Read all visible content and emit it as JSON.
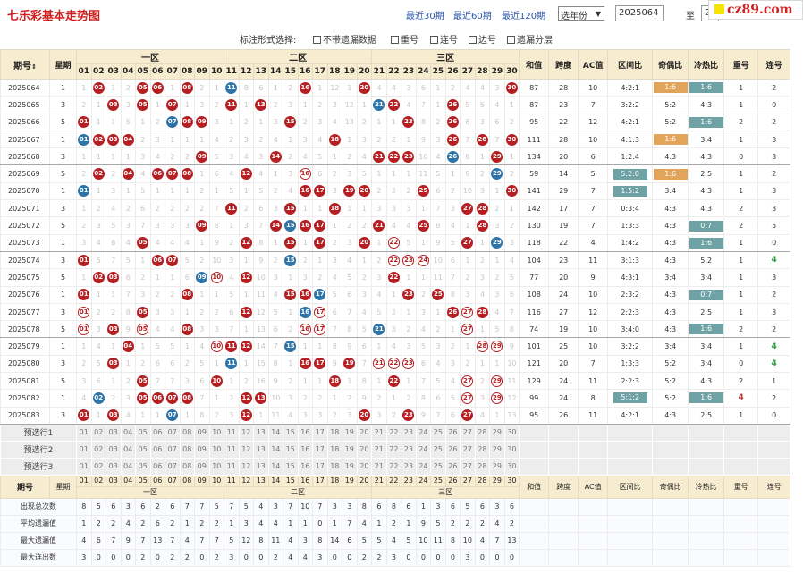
{
  "page": {
    "title": "七乐彩基本走势图",
    "periods": [
      "最近30期",
      "最近60期",
      "最近120期"
    ],
    "year_select": "选年份",
    "range_from": "2025064",
    "range_to_label": "至",
    "range_to": "2",
    "logo": "cz89.com",
    "options_label": "标注形式选择:",
    "options": [
      "不带遗漏数据",
      "重号",
      "连号",
      "边号",
      "遗漏分层"
    ]
  },
  "header": {
    "period": "期号",
    "period_sort": "⇕",
    "week": "星期",
    "zones": [
      "一区",
      "二区",
      "三区"
    ],
    "nums": [
      "01",
      "02",
      "03",
      "04",
      "05",
      "06",
      "07",
      "08",
      "09",
      "10",
      "11",
      "12",
      "13",
      "14",
      "15",
      "16",
      "17",
      "18",
      "19",
      "20",
      "21",
      "22",
      "23",
      "24",
      "25",
      "26",
      "27",
      "28",
      "29",
      "30"
    ],
    "stats": [
      "和值",
      "跨度",
      "AC值",
      "区间比",
      "奇偶比",
      "冷热比",
      "重号",
      "连号"
    ]
  },
  "rows": [
    {
      "p": "2025064",
      "w": "1",
      "c": [
        "1",
        "B02",
        "1",
        "2",
        "B05",
        "B06",
        "1",
        "B08",
        "2",
        "1",
        "L11",
        "8",
        "6",
        "1",
        "2",
        "B16",
        "1",
        "12",
        "1",
        "B20",
        "4",
        "4",
        "3",
        "6",
        "1",
        "2",
        "4",
        "4",
        "3",
        "B30"
      ],
      "st": [
        "87",
        "28",
        "10",
        "4:2:1",
        "O1:6",
        "B1:6",
        "1",
        "2"
      ]
    },
    {
      "p": "2025065",
      "w": "3",
      "c": [
        "2",
        "1",
        "B03",
        "3",
        "B05",
        "1",
        "B07",
        "1",
        "3",
        "2",
        "B11",
        "1",
        "B13",
        "2",
        "3",
        "1",
        "2",
        "3",
        "12",
        "1",
        "W21",
        "B22",
        "4",
        "7",
        "1",
        "B26",
        "5",
        "5",
        "4",
        "1"
      ],
      "st": [
        "87",
        "23",
        "7",
        "3:2:2",
        "5:2",
        "4:3",
        "1",
        "0"
      ]
    },
    {
      "p": "2025066",
      "w": "5",
      "c": [
        "B01",
        "1",
        "1",
        "5",
        "1",
        "2",
        "L07",
        "B08",
        "B09",
        "3",
        "1",
        "2",
        "1",
        "3",
        "B15",
        "2",
        "3",
        "4",
        "13",
        "2",
        "1",
        "1",
        "B23",
        "8",
        "2",
        "B26",
        "6",
        "3",
        "6",
        "2"
      ],
      "st": [
        "95",
        "22",
        "12",
        "4:2:1",
        "5:2",
        "B1:6",
        "2",
        "2"
      ]
    },
    {
      "p": "2025067",
      "w": "1",
      "c": [
        "L01",
        "B02",
        "B03",
        "B04",
        "2",
        "3",
        "1",
        "1",
        "1",
        "4",
        "2",
        "3",
        "2",
        "4",
        "1",
        "3",
        "4",
        "B18",
        "1",
        "3",
        "2",
        "2",
        "1",
        "9",
        "3",
        "B26",
        "7",
        "B28",
        "7",
        "B30"
      ],
      "st": [
        "111",
        "28",
        "10",
        "4:1:3",
        "O1:6",
        "3:4",
        "1",
        "3"
      ]
    },
    {
      "p": "2025068",
      "w": "3",
      "c": [
        "1",
        "1",
        "1",
        "1",
        "3",
        "4",
        "2",
        "2",
        "B09",
        "5",
        "3",
        "4",
        "3",
        "B14",
        "2",
        "4",
        "5",
        "1",
        "2",
        "4",
        "B21",
        "B22",
        "B23",
        "10",
        "4",
        "L26",
        "8",
        "1",
        "B29",
        "1"
      ],
      "st": [
        "134",
        "20",
        "6",
        "1:2:4",
        "4:3",
        "4:3",
        "0",
        "3"
      ]
    },
    {
      "p": "2025069",
      "w": "5",
      "c": [
        "2",
        "B02",
        "2",
        "B04",
        "4",
        "B06",
        "B07",
        "B08",
        "1",
        "6",
        "4",
        "B12",
        "4",
        "1",
        "3",
        "OB16",
        "6",
        "2",
        "3",
        "5",
        "1",
        "1",
        "1",
        "11",
        "5",
        "1",
        "9",
        "2",
        "L29",
        "2"
      ],
      "st": [
        "59",
        "14",
        "5",
        "B5:2:0",
        "O1:6",
        "2:5",
        "1",
        "2"
      ]
    },
    {
      "p": "2025070",
      "w": "1",
      "c": [
        "L01",
        "1",
        "3",
        "1",
        "5",
        "1",
        "1",
        "1",
        "2",
        "1",
        "5",
        "1",
        "5",
        "2",
        "4",
        "B16",
        "B17",
        "3",
        "B19",
        "B20",
        "2",
        "2",
        "2",
        "B25",
        "6",
        "2",
        "10",
        "3",
        "1",
        "B30"
      ],
      "st": [
        "141",
        "29",
        "7",
        "B1:5:2",
        "3:4",
        "4:3",
        "1",
        "3"
      ]
    },
    {
      "p": "2025071",
      "w": "3",
      "c": [
        "1",
        "2",
        "4",
        "2",
        "6",
        "2",
        "2",
        "2",
        "2",
        "7",
        "B11",
        "2",
        "6",
        "3",
        "B15",
        "1",
        "1",
        "B18",
        "1",
        "1",
        "3",
        "3",
        "3",
        "1",
        "7",
        "3",
        "B27",
        "B28",
        "2",
        "1"
      ],
      "st": [
        "142",
        "17",
        "7",
        "0:3:4",
        "4:3",
        "4:3",
        "2",
        "3"
      ]
    },
    {
      "p": "2025072",
      "w": "5",
      "c": [
        "2",
        "3",
        "5",
        "3",
        "7",
        "3",
        "3",
        "3",
        "B09",
        "8",
        "1",
        "3",
        "7",
        "B14",
        "L15",
        "B16",
        "B17",
        "1",
        "2",
        "2",
        "B21",
        "4",
        "4",
        "B25",
        "8",
        "4",
        "1",
        "B28",
        "3",
        "2"
      ],
      "st": [
        "130",
        "19",
        "7",
        "1:3:3",
        "4:3",
        "B0:7",
        "2",
        "5"
      ]
    },
    {
      "p": "2025073",
      "w": "1",
      "c": [
        "3",
        "4",
        "6",
        "4",
        "B05",
        "4",
        "4",
        "4",
        "1",
        "9",
        "2",
        "B12",
        "8",
        "1",
        "B15",
        "1",
        "B17",
        "2",
        "3",
        "B20",
        "1",
        "OB22",
        "5",
        "1",
        "9",
        "5",
        "B27",
        "1",
        "L29",
        "3"
      ],
      "st": [
        "118",
        "22",
        "4",
        "1:4:2",
        "4:3",
        "B1:6",
        "1",
        "0"
      ]
    },
    {
      "p": "2025074",
      "w": "3",
      "c": [
        "B01",
        "5",
        "7",
        "5",
        "1",
        "B06",
        "B07",
        "5",
        "2",
        "10",
        "3",
        "1",
        "9",
        "2",
        "L15",
        "2",
        "1",
        "3",
        "4",
        "1",
        "2",
        "OB22",
        "OB23",
        "OB24",
        "10",
        "6",
        "1",
        "2",
        "1",
        "4"
      ],
      "st": [
        "104",
        "23",
        "11",
        "3:1:3",
        "4:3",
        "5:2",
        "1",
        "G4"
      ]
    },
    {
      "p": "2025075",
      "w": "5",
      "c": [
        "1",
        "B02",
        "B03",
        "6",
        "2",
        "1",
        "1",
        "6",
        "L09",
        "OB10",
        "4",
        "B12",
        "10",
        "3",
        "1",
        "3",
        "2",
        "4",
        "5",
        "2",
        "3",
        "B22",
        "1",
        "1",
        "11",
        "7",
        "2",
        "3",
        "2",
        "5"
      ],
      "st": [
        "77",
        "20",
        "9",
        "4:3:1",
        "3:4",
        "3:4",
        "1",
        "3"
      ]
    },
    {
      "p": "2025076",
      "w": "1",
      "c": [
        "B01",
        "1",
        "1",
        "7",
        "3",
        "2",
        "2",
        "B08",
        "1",
        "1",
        "5",
        "1",
        "11",
        "4",
        "B15",
        "B16",
        "L17",
        "5",
        "6",
        "3",
        "4",
        "1",
        "B23",
        "2",
        "B25",
        "8",
        "3",
        "4",
        "3",
        "6"
      ],
      "st": [
        "108",
        "24",
        "10",
        "2:3:2",
        "4:3",
        "B0:7",
        "1",
        "2"
      ]
    },
    {
      "p": "2025077",
      "w": "3",
      "c": [
        "OB01",
        "2",
        "2",
        "8",
        "B05",
        "3",
        "3",
        "1",
        "2",
        "2",
        "6",
        "B12",
        "12",
        "5",
        "1",
        "L16",
        "OB17",
        "6",
        "7",
        "4",
        "5",
        "2",
        "1",
        "3",
        "1",
        "B26",
        "OB27",
        "B28",
        "4",
        "7"
      ],
      "st": [
        "116",
        "27",
        "12",
        "2:2:3",
        "4:3",
        "2:5",
        "1",
        "3"
      ]
    },
    {
      "p": "2025078",
      "w": "5",
      "c": [
        "OB01",
        "3",
        "B03",
        "9",
        "OB05",
        "4",
        "4",
        "B08",
        "3",
        "3",
        "7",
        "1",
        "13",
        "6",
        "2",
        "OB16",
        "OB17",
        "7",
        "8",
        "5",
        "L21",
        "3",
        "2",
        "4",
        "2",
        "1",
        "OB27",
        "1",
        "5",
        "8"
      ],
      "st": [
        "74",
        "19",
        "10",
        "3:4:0",
        "4:3",
        "B1:6",
        "2",
        "2"
      ]
    },
    {
      "p": "2025079",
      "w": "1",
      "c": [
        "1",
        "4",
        "1",
        "B04",
        "1",
        "5",
        "5",
        "1",
        "4",
        "OB10",
        "B11",
        "B12",
        "14",
        "7",
        "L15",
        "1",
        "1",
        "8",
        "9",
        "6",
        "1",
        "4",
        "3",
        "5",
        "3",
        "2",
        "1",
        "OB28",
        "OB29",
        "9"
      ],
      "st": [
        "101",
        "25",
        "10",
        "3:2:2",
        "3:4",
        "3:4",
        "1",
        "G4"
      ]
    },
    {
      "p": "2025080",
      "w": "3",
      "c": [
        "2",
        "5",
        "B03",
        "1",
        "2",
        "6",
        "6",
        "2",
        "5",
        "1",
        "L11",
        "1",
        "15",
        "8",
        "1",
        "B16",
        "B17",
        "9",
        "B19",
        "7",
        "OB21",
        "OB22",
        "OB23",
        "6",
        "4",
        "3",
        "2",
        "1",
        "1",
        "10"
      ],
      "st": [
        "121",
        "20",
        "7",
        "1:3:3",
        "5:2",
        "3:4",
        "0",
        "G4"
      ]
    },
    {
      "p": "2025081",
      "w": "5",
      "c": [
        "3",
        "6",
        "1",
        "2",
        "B05",
        "7",
        "7",
        "3",
        "6",
        "B10",
        "1",
        "2",
        "16",
        "9",
        "2",
        "1",
        "1",
        "B18",
        "1",
        "8",
        "1",
        "B22",
        "1",
        "7",
        "5",
        "4",
        "OB27",
        "2",
        "OB29",
        "11"
      ],
      "st": [
        "129",
        "24",
        "11",
        "2:2:3",
        "5:2",
        "4:3",
        "2",
        "1"
      ]
    },
    {
      "p": "2025082",
      "w": "1",
      "c": [
        "4",
        "L02",
        "2",
        "3",
        "B05",
        "B06",
        "B07",
        "B08",
        "7",
        "1",
        "2",
        "B12",
        "B13",
        "10",
        "3",
        "2",
        "2",
        "1",
        "2",
        "9",
        "2",
        "1",
        "2",
        "8",
        "6",
        "5",
        "OB27",
        "3",
        "OB29",
        "12"
      ],
      "st": [
        "99",
        "24",
        "8",
        "B5:1:2",
        "5:2",
        "B1:6",
        "R4",
        "2"
      ]
    },
    {
      "p": "2025083",
      "w": "3",
      "c": [
        "B01",
        "1",
        "B03",
        "4",
        "1",
        "1",
        "L07",
        "1",
        "8",
        "2",
        "3",
        "B12",
        "1",
        "11",
        "4",
        "3",
        "3",
        "2",
        "3",
        "B20",
        "3",
        "2",
        "B23",
        "9",
        "7",
        "6",
        "B27",
        "4",
        "1",
        "13"
      ],
      "st": [
        "95",
        "26",
        "11",
        "4:2:1",
        "4:3",
        "2:5",
        "1",
        "0"
      ]
    }
  ],
  "prelim": [
    "预选行1",
    "预选行2",
    "预选行3"
  ],
  "footer": {
    "period": "期号",
    "week": "星期",
    "zones": [
      "一区",
      "二区",
      "三区"
    ],
    "stats": [
      "和值",
      "跨度",
      "AC值",
      "区间比",
      "奇偶比",
      "冷热比",
      "重号",
      "连号"
    ]
  },
  "stat_rows": [
    {
      "label": "出现总次数",
      "v": [
        "8",
        "5",
        "6",
        "3",
        "6",
        "2",
        "6",
        "7",
        "7",
        "5",
        "7",
        "5",
        "4",
        "3",
        "7",
        "10",
        "7",
        "3",
        "3",
        "8",
        "6",
        "8",
        "6",
        "1",
        "3",
        "6",
        "5",
        "6",
        "3",
        "6"
      ]
    },
    {
      "label": "平均遗漏值",
      "v": [
        "1",
        "2",
        "2",
        "4",
        "2",
        "6",
        "2",
        "1",
        "2",
        "2",
        "1",
        "3",
        "4",
        "4",
        "1",
        "1",
        "0",
        "1",
        "7",
        "4",
        "1",
        "2",
        "1",
        "9",
        "5",
        "2",
        "2",
        "2",
        "4",
        "2"
      ]
    },
    {
      "label": "最大遗漏值",
      "v": [
        "4",
        "6",
        "7",
        "9",
        "7",
        "13",
        "7",
        "4",
        "7",
        "7",
        "5",
        "12",
        "8",
        "11",
        "4",
        "3",
        "8",
        "14",
        "6",
        "5",
        "5",
        "4",
        "5",
        "10",
        "11",
        "8",
        "10",
        "4",
        "7",
        "13"
      ]
    },
    {
      "label": "最大连出数",
      "v": [
        "3",
        "0",
        "0",
        "0",
        "2",
        "0",
        "2",
        "2",
        "0",
        "2",
        "3",
        "0",
        "0",
        "2",
        "4",
        "4",
        "3",
        "0",
        "0",
        "2",
        "2",
        "3",
        "0",
        "0",
        "0",
        "0",
        "3",
        "0",
        "0",
        "0"
      ]
    }
  ]
}
